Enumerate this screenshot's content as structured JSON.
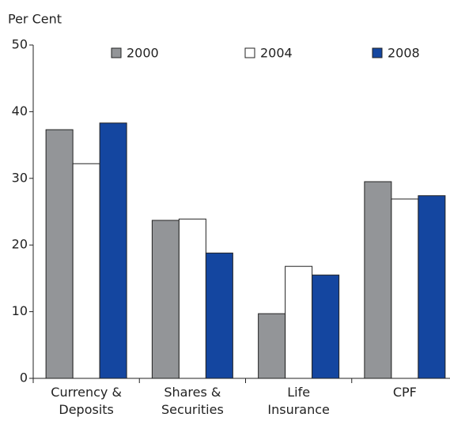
{
  "chart_data": {
    "type": "bar",
    "y_label": "Per Cent",
    "categories": [
      "Currency &\nDeposits",
      "Shares &\nSecurities",
      "Life\nInsurance",
      "CPF"
    ],
    "series": [
      {
        "name": "2000",
        "color": "#939598",
        "values": [
          37.3,
          23.7,
          9.7,
          29.5
        ]
      },
      {
        "name": "2004",
        "color": "#ffffff",
        "values": [
          32.2,
          23.9,
          16.8,
          26.9
        ]
      },
      {
        "name": "2008",
        "color": "#1446a0",
        "values": [
          38.3,
          18.8,
          15.5,
          27.4
        ]
      }
    ],
    "ylim": [
      0,
      50
    ],
    "yticks": [
      0,
      10,
      20,
      30,
      40,
      50
    ],
    "grid": false,
    "legend": "top"
  }
}
